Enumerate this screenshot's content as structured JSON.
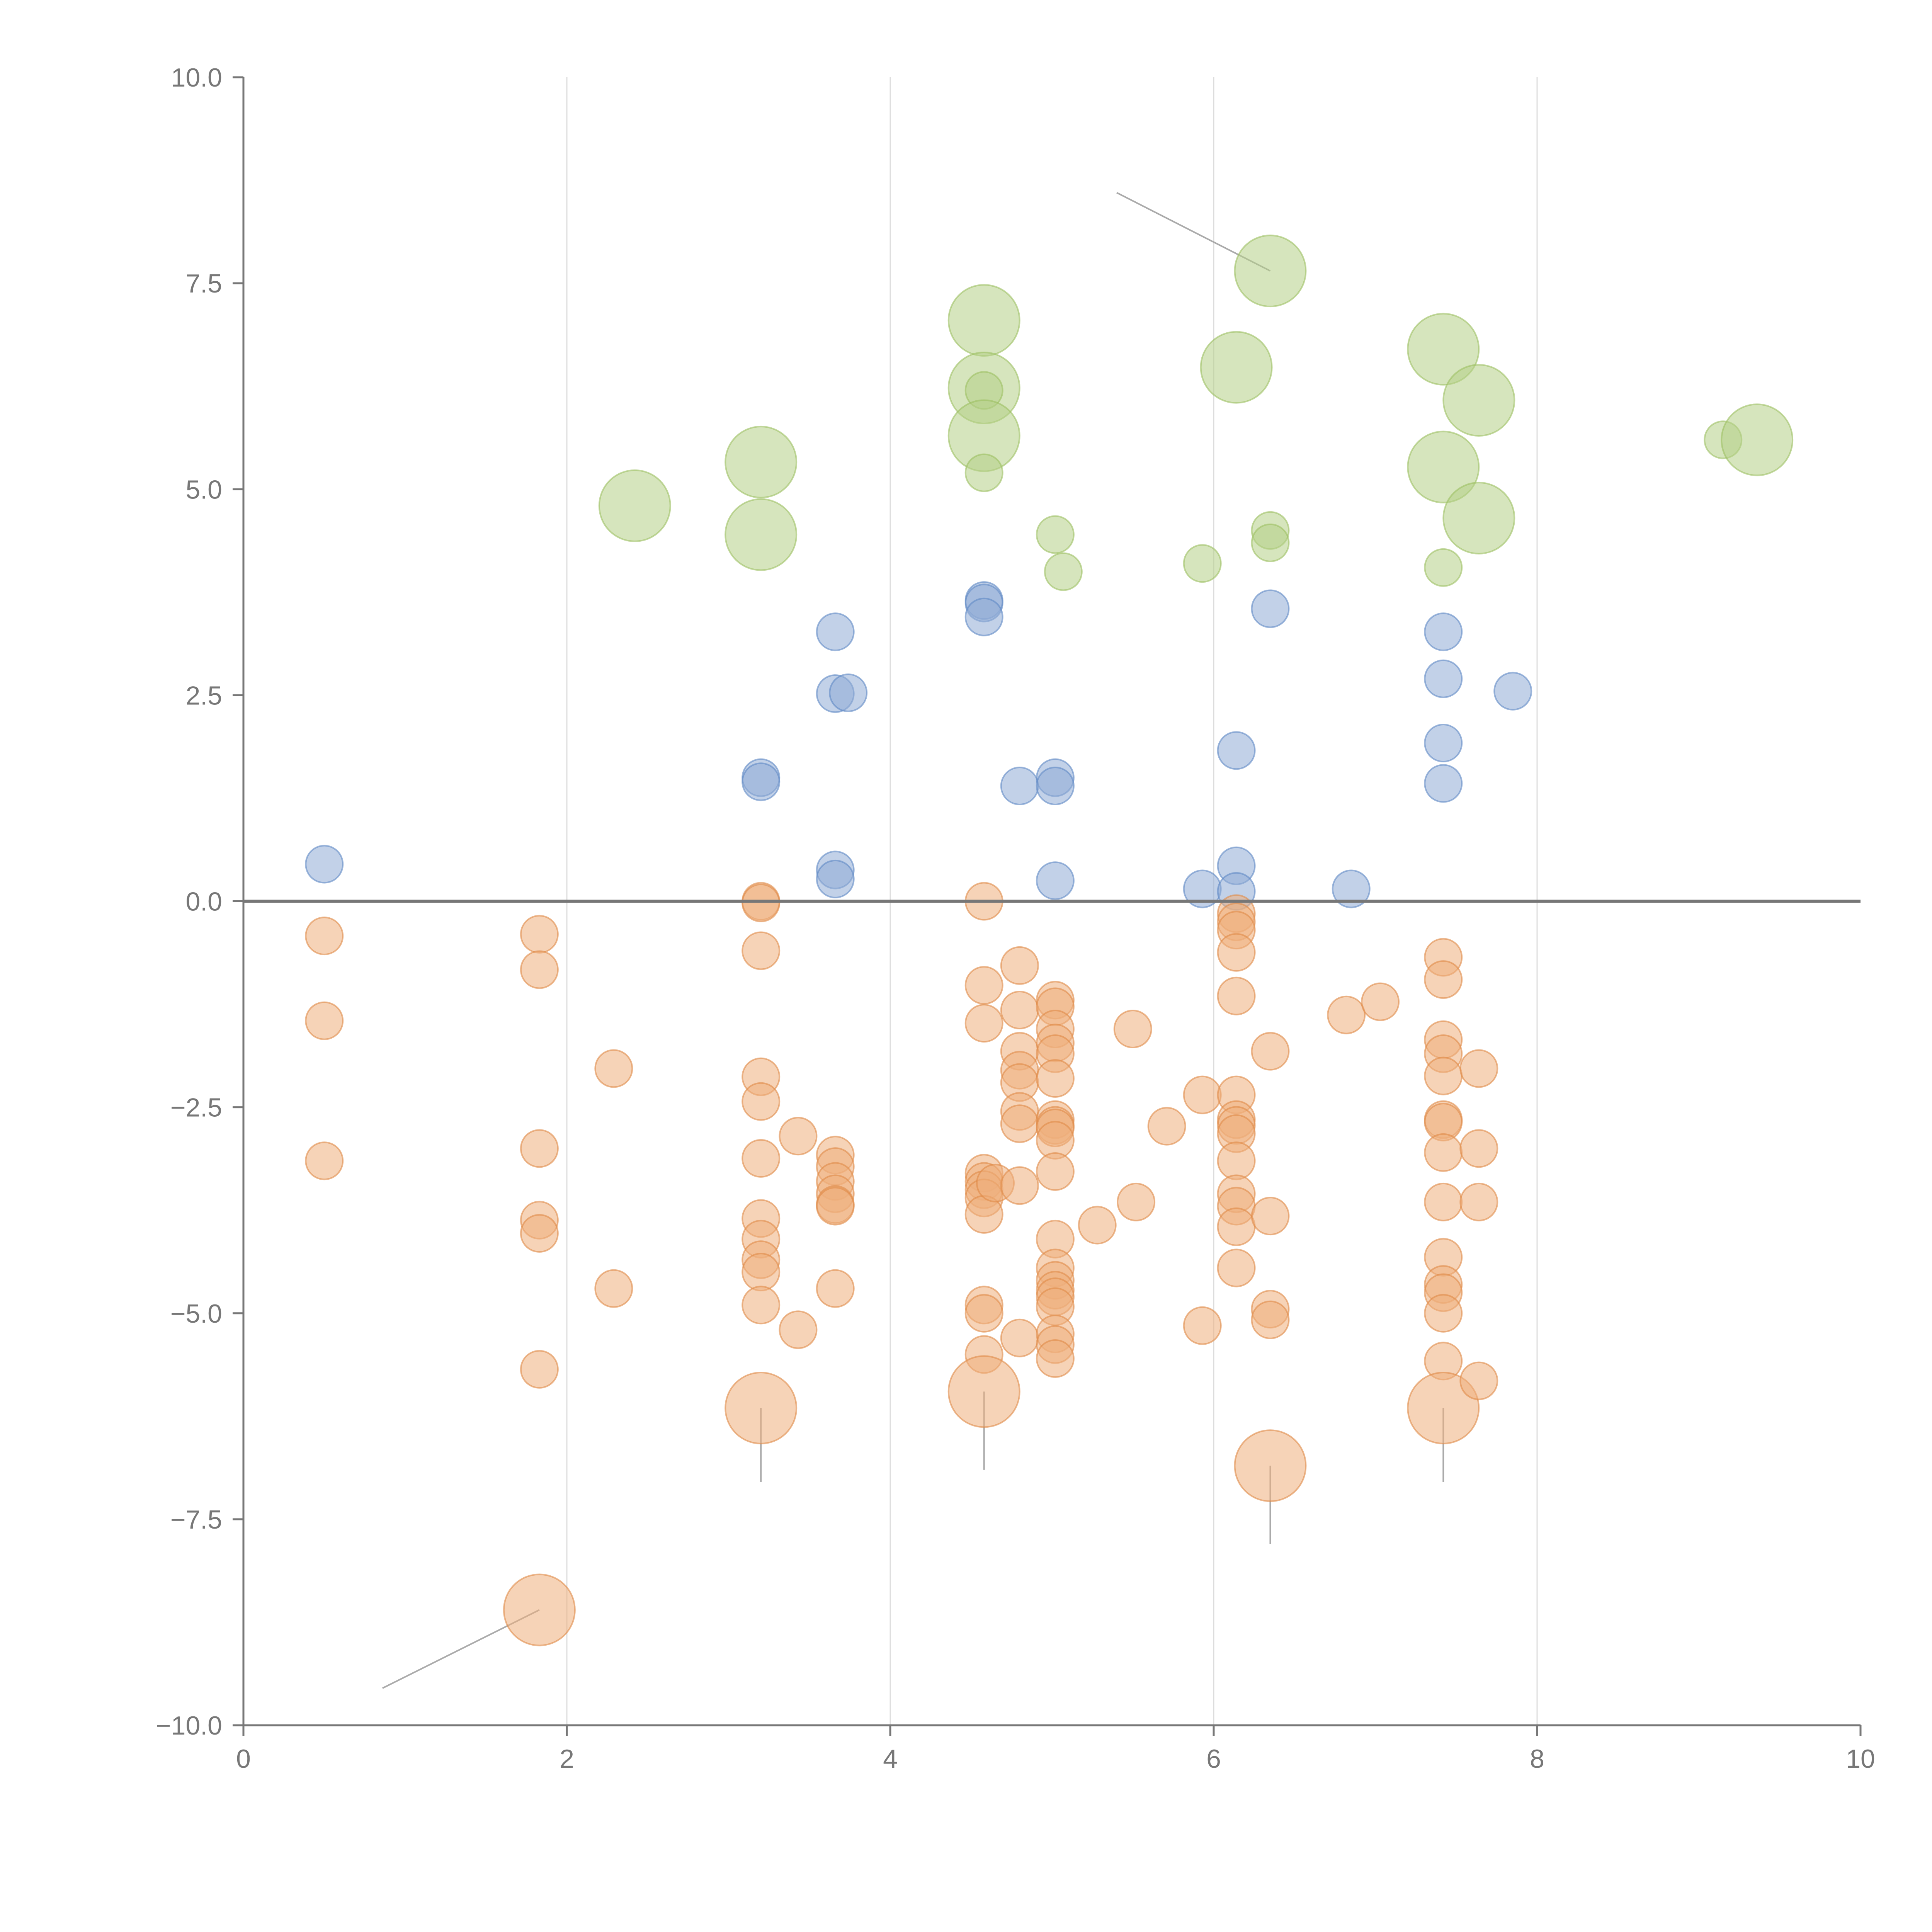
{
  "chart_data": {
    "type": "scatter",
    "title": "",
    "xlabel": "",
    "ylabel": "",
    "xlim": [
      0,
      10
    ],
    "ylim": [
      -10,
      10
    ],
    "grid": {
      "x": true,
      "y": false
    },
    "reference_line_y": 0,
    "legend": "none",
    "x_ticks": [
      0,
      2,
      4,
      6,
      8,
      10
    ],
    "x_tick_labels": [
      "0",
      "2",
      "4",
      "6",
      "8",
      "10"
    ],
    "y_ticks": [
      10,
      7.5,
      5,
      2.5,
      0,
      -2.5,
      -5,
      -7.5,
      -10
    ],
    "y_tick_labels": [
      "10.0",
      "7.5",
      "5.0",
      "2.5",
      "0.0",
      "−2.5",
      "−5.0",
      "−7.5",
      "−10.0"
    ],
    "series": [
      {
        "name": "green",
        "color": "#b5cf86",
        "stroke": "#9cbf63",
        "points": [
          {
            "x": 2.42,
            "y": 4.8,
            "r": "l"
          },
          {
            "x": 3.2,
            "y": 5.33,
            "r": "l"
          },
          {
            "x": 3.2,
            "y": 4.45,
            "r": "l"
          },
          {
            "x": 4.58,
            "y": 7.05,
            "r": "l"
          },
          {
            "x": 4.58,
            "y": 6.23,
            "r": "l"
          },
          {
            "x": 4.58,
            "y": 6.2,
            "r": "s"
          },
          {
            "x": 4.58,
            "y": 5.65,
            "r": "l"
          },
          {
            "x": 4.58,
            "y": 5.2,
            "r": "s"
          },
          {
            "x": 5.02,
            "y": 4.45,
            "r": "s"
          },
          {
            "x": 5.07,
            "y": 4.0,
            "r": "s"
          },
          {
            "x": 5.93,
            "y": 4.1,
            "r": "s"
          },
          {
            "x": 6.14,
            "y": 6.48,
            "r": "l"
          },
          {
            "x": 6.35,
            "y": 7.65,
            "r": "l"
          },
          {
            "x": 6.35,
            "y": 4.5,
            "r": "s"
          },
          {
            "x": 6.35,
            "y": 4.35,
            "r": "s"
          },
          {
            "x": 7.42,
            "y": 6.7,
            "r": "l"
          },
          {
            "x": 7.42,
            "y": 5.27,
            "r": "l"
          },
          {
            "x": 7.42,
            "y": 4.05,
            "r": "s"
          },
          {
            "x": 7.64,
            "y": 6.08,
            "r": "l"
          },
          {
            "x": 7.64,
            "y": 4.65,
            "r": "l"
          },
          {
            "x": 9.15,
            "y": 5.6,
            "r": "s"
          },
          {
            "x": 9.36,
            "y": 5.6,
            "r": "l"
          }
        ]
      },
      {
        "name": "blue",
        "color": "#8fabd6",
        "stroke": "#5f88c4",
        "points": [
          {
            "x": 0.5,
            "y": 0.45,
            "r": "s"
          },
          {
            "x": 3.2,
            "y": 1.5,
            "r": "s"
          },
          {
            "x": 3.2,
            "y": 1.45,
            "r": "s"
          },
          {
            "x": 3.66,
            "y": 3.27,
            "r": "s"
          },
          {
            "x": 3.66,
            "y": 2.52,
            "r": "s"
          },
          {
            "x": 3.74,
            "y": 2.53,
            "r": "s"
          },
          {
            "x": 3.66,
            "y": 0.38,
            "r": "s"
          },
          {
            "x": 3.66,
            "y": 0.27,
            "r": "s"
          },
          {
            "x": 4.58,
            "y": 3.65,
            "r": "s"
          },
          {
            "x": 4.58,
            "y": 3.62,
            "r": "s"
          },
          {
            "x": 4.58,
            "y": 3.45,
            "r": "s"
          },
          {
            "x": 4.8,
            "y": 1.4,
            "r": "s"
          },
          {
            "x": 5.02,
            "y": 1.5,
            "r": "s"
          },
          {
            "x": 5.02,
            "y": 1.4,
            "r": "s"
          },
          {
            "x": 5.02,
            "y": 0.25,
            "r": "s"
          },
          {
            "x": 5.93,
            "y": 0.15,
            "r": "s"
          },
          {
            "x": 6.14,
            "y": 1.83,
            "r": "s"
          },
          {
            "x": 6.14,
            "y": 0.43,
            "r": "s"
          },
          {
            "x": 6.14,
            "y": 0.12,
            "r": "s"
          },
          {
            "x": 6.35,
            "y": 3.55,
            "r": "s"
          },
          {
            "x": 6.85,
            "y": 0.15,
            "r": "s"
          },
          {
            "x": 7.42,
            "y": 3.27,
            "r": "s"
          },
          {
            "x": 7.42,
            "y": 2.7,
            "r": "s"
          },
          {
            "x": 7.42,
            "y": 1.92,
            "r": "s"
          },
          {
            "x": 7.42,
            "y": 1.43,
            "r": "s"
          },
          {
            "x": 7.85,
            "y": 2.55,
            "r": "s"
          }
        ]
      },
      {
        "name": "orange",
        "color": "#eeae7c",
        "stroke": "#e08a48",
        "points": [
          {
            "x": 0.5,
            "y": -0.42,
            "r": "s"
          },
          {
            "x": 0.5,
            "y": -1.45,
            "r": "s"
          },
          {
            "x": 0.5,
            "y": -3.15,
            "r": "s"
          },
          {
            "x": 1.83,
            "y": -0.4,
            "r": "s"
          },
          {
            "x": 1.83,
            "y": -0.83,
            "r": "s"
          },
          {
            "x": 1.83,
            "y": -3.0,
            "r": "s"
          },
          {
            "x": 1.83,
            "y": -3.87,
            "r": "s"
          },
          {
            "x": 1.83,
            "y": -4.03,
            "r": "s"
          },
          {
            "x": 1.83,
            "y": -5.68,
            "r": "s"
          },
          {
            "x": 1.83,
            "y": -8.6,
            "r": "l"
          },
          {
            "x": 2.29,
            "y": -2.03,
            "r": "s"
          },
          {
            "x": 2.29,
            "y": -4.7,
            "r": "s"
          },
          {
            "x": 3.2,
            "y": 0.0,
            "r": "s"
          },
          {
            "x": 3.2,
            "y": -0.02,
            "r": "s"
          },
          {
            "x": 3.2,
            "y": -0.6,
            "r": "s"
          },
          {
            "x": 3.2,
            "y": -2.13,
            "r": "s"
          },
          {
            "x": 3.2,
            "y": -2.43,
            "r": "s"
          },
          {
            "x": 3.2,
            "y": -3.12,
            "r": "s"
          },
          {
            "x": 3.2,
            "y": -3.85,
            "r": "s"
          },
          {
            "x": 3.2,
            "y": -4.1,
            "r": "s"
          },
          {
            "x": 3.2,
            "y": -4.35,
            "r": "s"
          },
          {
            "x": 3.2,
            "y": -4.5,
            "r": "s"
          },
          {
            "x": 3.2,
            "y": -4.9,
            "r": "s"
          },
          {
            "x": 3.2,
            "y": -6.15,
            "r": "l"
          },
          {
            "x": 3.43,
            "y": -2.85,
            "r": "s"
          },
          {
            "x": 3.43,
            "y": -5.2,
            "r": "s"
          },
          {
            "x": 3.66,
            "y": -3.08,
            "r": "s"
          },
          {
            "x": 3.66,
            "y": -3.22,
            "r": "s"
          },
          {
            "x": 3.66,
            "y": -3.4,
            "r": "s"
          },
          {
            "x": 3.66,
            "y": -3.55,
            "r": "s"
          },
          {
            "x": 3.66,
            "y": -3.68,
            "r": "s"
          },
          {
            "x": 3.66,
            "y": -3.7,
            "r": "s"
          },
          {
            "x": 3.66,
            "y": -4.7,
            "r": "s"
          },
          {
            "x": 4.58,
            "y": 0.0,
            "r": "s"
          },
          {
            "x": 4.58,
            "y": -1.02,
            "r": "s"
          },
          {
            "x": 4.58,
            "y": -1.48,
            "r": "s"
          },
          {
            "x": 4.58,
            "y": -3.3,
            "r": "s"
          },
          {
            "x": 4.58,
            "y": -3.4,
            "r": "s"
          },
          {
            "x": 4.58,
            "y": -3.5,
            "r": "s"
          },
          {
            "x": 4.58,
            "y": -3.6,
            "r": "s"
          },
          {
            "x": 4.58,
            "y": -3.8,
            "r": "s"
          },
          {
            "x": 4.58,
            "y": -4.9,
            "r": "s"
          },
          {
            "x": 4.58,
            "y": -5.0,
            "r": "s"
          },
          {
            "x": 4.58,
            "y": -5.5,
            "r": "s"
          },
          {
            "x": 4.58,
            "y": -5.95,
            "r": "l"
          },
          {
            "x": 4.65,
            "y": -3.42,
            "r": "s"
          },
          {
            "x": 4.8,
            "y": -0.78,
            "r": "s"
          },
          {
            "x": 4.8,
            "y": -1.32,
            "r": "s"
          },
          {
            "x": 4.8,
            "y": -1.82,
            "r": "s"
          },
          {
            "x": 4.8,
            "y": -2.05,
            "r": "s"
          },
          {
            "x": 4.8,
            "y": -2.2,
            "r": "s"
          },
          {
            "x": 4.8,
            "y": -2.55,
            "r": "s"
          },
          {
            "x": 4.8,
            "y": -2.7,
            "r": "s"
          },
          {
            "x": 4.8,
            "y": -3.45,
            "r": "s"
          },
          {
            "x": 4.8,
            "y": -5.3,
            "r": "s"
          },
          {
            "x": 5.02,
            "y": -1.2,
            "r": "s"
          },
          {
            "x": 5.02,
            "y": -1.28,
            "r": "s"
          },
          {
            "x": 5.02,
            "y": -1.55,
            "r": "s"
          },
          {
            "x": 5.02,
            "y": -1.72,
            "r": "s"
          },
          {
            "x": 5.02,
            "y": -1.85,
            "r": "s"
          },
          {
            "x": 5.02,
            "y": -2.15,
            "r": "s"
          },
          {
            "x": 5.02,
            "y": -2.65,
            "r": "s"
          },
          {
            "x": 5.02,
            "y": -2.72,
            "r": "s"
          },
          {
            "x": 5.02,
            "y": -2.75,
            "r": "s"
          },
          {
            "x": 5.02,
            "y": -2.9,
            "r": "s"
          },
          {
            "x": 5.02,
            "y": -3.28,
            "r": "s"
          },
          {
            "x": 5.02,
            "y": -4.1,
            "r": "s"
          },
          {
            "x": 5.02,
            "y": -4.45,
            "r": "s"
          },
          {
            "x": 5.02,
            "y": -4.6,
            "r": "s"
          },
          {
            "x": 5.02,
            "y": -4.72,
            "r": "s"
          },
          {
            "x": 5.02,
            "y": -4.8,
            "r": "s"
          },
          {
            "x": 5.02,
            "y": -4.92,
            "r": "s"
          },
          {
            "x": 5.02,
            "y": -5.25,
            "r": "s"
          },
          {
            "x": 5.02,
            "y": -5.38,
            "r": "s"
          },
          {
            "x": 5.02,
            "y": -5.55,
            "r": "s"
          },
          {
            "x": 5.28,
            "y": -3.93,
            "r": "s"
          },
          {
            "x": 5.5,
            "y": -1.55,
            "r": "s"
          },
          {
            "x": 5.52,
            "y": -3.65,
            "r": "s"
          },
          {
            "x": 5.71,
            "y": -2.73,
            "r": "s"
          },
          {
            "x": 5.93,
            "y": -2.35,
            "r": "s"
          },
          {
            "x": 5.93,
            "y": -5.15,
            "r": "s"
          },
          {
            "x": 6.14,
            "y": -0.15,
            "r": "s"
          },
          {
            "x": 6.14,
            "y": -0.25,
            "r": "s"
          },
          {
            "x": 6.14,
            "y": -0.35,
            "r": "s"
          },
          {
            "x": 6.14,
            "y": -0.62,
            "r": "s"
          },
          {
            "x": 6.14,
            "y": -1.15,
            "r": "s"
          },
          {
            "x": 6.14,
            "y": -2.35,
            "r": "s"
          },
          {
            "x": 6.14,
            "y": -2.65,
            "r": "s"
          },
          {
            "x": 6.14,
            "y": -2.72,
            "r": "s"
          },
          {
            "x": 6.14,
            "y": -2.82,
            "r": "s"
          },
          {
            "x": 6.14,
            "y": -3.15,
            "r": "s"
          },
          {
            "x": 6.14,
            "y": -3.55,
            "r": "s"
          },
          {
            "x": 6.14,
            "y": -3.7,
            "r": "s"
          },
          {
            "x": 6.14,
            "y": -3.95,
            "r": "s"
          },
          {
            "x": 6.14,
            "y": -4.45,
            "r": "s"
          },
          {
            "x": 6.35,
            "y": -1.82,
            "r": "s"
          },
          {
            "x": 6.35,
            "y": -3.82,
            "r": "s"
          },
          {
            "x": 6.35,
            "y": -4.95,
            "r": "s"
          },
          {
            "x": 6.35,
            "y": -5.08,
            "r": "s"
          },
          {
            "x": 6.35,
            "y": -6.85,
            "r": "l"
          },
          {
            "x": 6.82,
            "y": -1.38,
            "r": "s"
          },
          {
            "x": 7.03,
            "y": -1.22,
            "r": "s"
          },
          {
            "x": 7.42,
            "y": -0.68,
            "r": "s"
          },
          {
            "x": 7.42,
            "y": -0.95,
            "r": "s"
          },
          {
            "x": 7.42,
            "y": -1.68,
            "r": "s"
          },
          {
            "x": 7.42,
            "y": -1.85,
            "r": "s"
          },
          {
            "x": 7.42,
            "y": -2.12,
            "r": "s"
          },
          {
            "x": 7.42,
            "y": -2.65,
            "r": "s"
          },
          {
            "x": 7.42,
            "y": -2.68,
            "r": "s"
          },
          {
            "x": 7.42,
            "y": -3.05,
            "r": "s"
          },
          {
            "x": 7.42,
            "y": -3.65,
            "r": "s"
          },
          {
            "x": 7.42,
            "y": -4.32,
            "r": "s"
          },
          {
            "x": 7.42,
            "y": -4.65,
            "r": "s"
          },
          {
            "x": 7.42,
            "y": -4.75,
            "r": "s"
          },
          {
            "x": 7.42,
            "y": -5.0,
            "r": "s"
          },
          {
            "x": 7.42,
            "y": -5.58,
            "r": "s"
          },
          {
            "x": 7.42,
            "y": -6.15,
            "r": "l"
          },
          {
            "x": 7.64,
            "y": -2.03,
            "r": "s"
          },
          {
            "x": 7.64,
            "y": -3.0,
            "r": "s"
          },
          {
            "x": 7.64,
            "y": -3.65,
            "r": "s"
          },
          {
            "x": 7.64,
            "y": -5.82,
            "r": "s"
          }
        ]
      }
    ],
    "annotation_leaders": [
      {
        "from": [
          6.35,
          7.65
        ],
        "to": [
          5.4,
          8.6
        ]
      },
      {
        "from": [
          1.83,
          -8.6
        ],
        "to": [
          0.86,
          -9.55
        ]
      },
      {
        "from": [
          3.2,
          -6.15
        ],
        "to": [
          3.2,
          -7.05
        ]
      },
      {
        "from": [
          4.58,
          -5.95
        ],
        "to": [
          4.58,
          -6.9
        ]
      },
      {
        "from": [
          6.35,
          -6.85
        ],
        "to": [
          6.35,
          -7.8
        ]
      },
      {
        "from": [
          7.42,
          -6.15
        ],
        "to": [
          7.42,
          -7.05
        ]
      }
    ]
  }
}
